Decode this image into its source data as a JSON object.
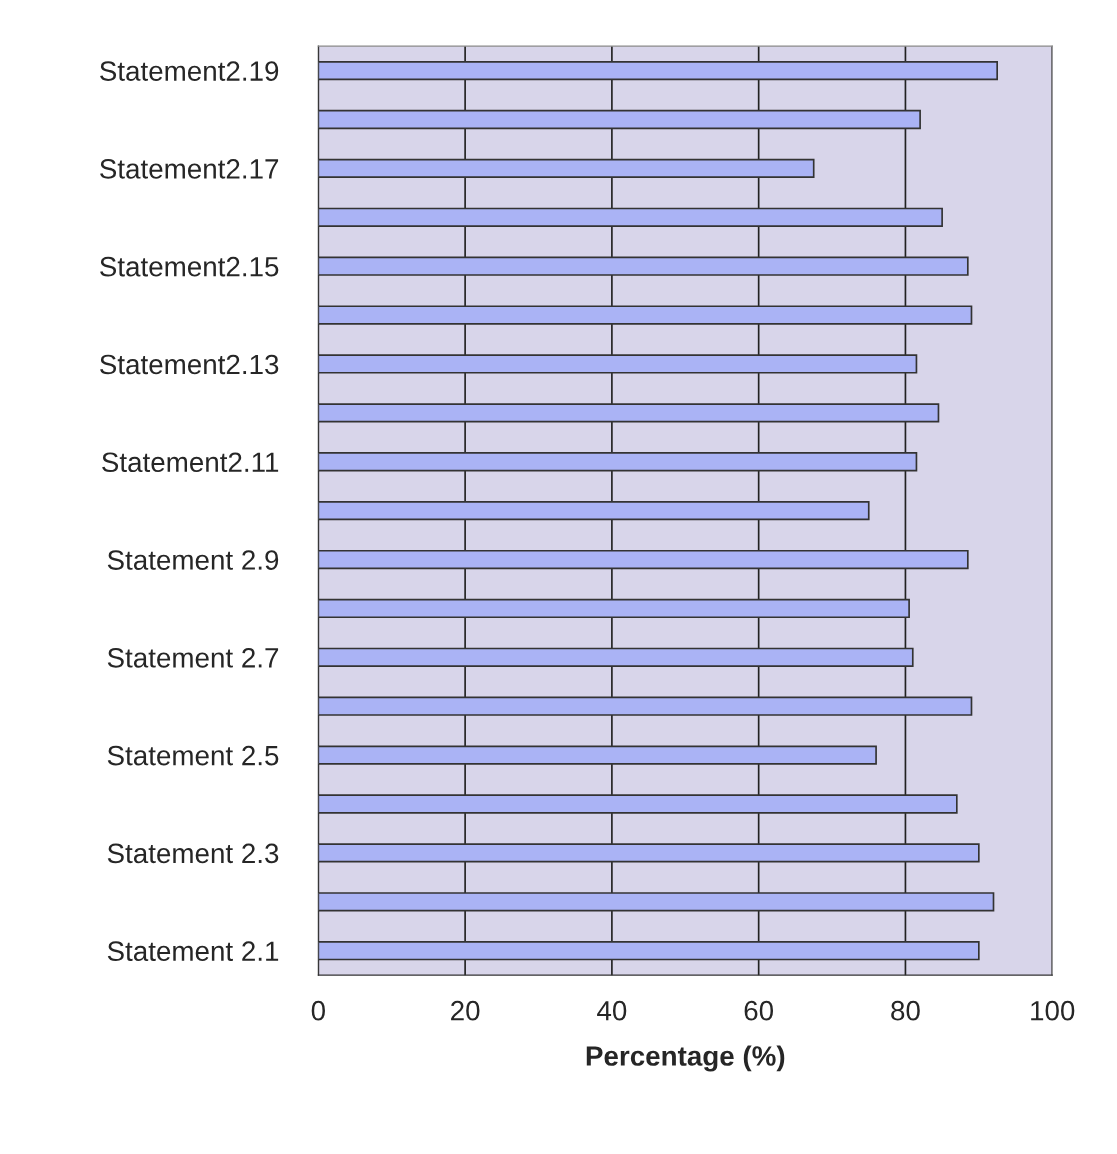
{
  "chart_data": {
    "type": "bar",
    "orientation": "horizontal",
    "xlabel": "Percentage (%)",
    "categories": [
      "Statement2.19",
      null,
      "Statement2.17",
      null,
      "Statement2.15",
      null,
      "Statement2.13",
      null,
      "Statement2.11",
      null,
      "Statement 2.9",
      null,
      "Statement 2.7",
      null,
      "Statement 2.5",
      null,
      "Statement 2.3",
      null,
      "Statement 2.1"
    ],
    "values": [
      92.5,
      82,
      67.5,
      85,
      88.5,
      89,
      81.5,
      84.5,
      81.5,
      75,
      88.5,
      80.5,
      81,
      89,
      76,
      87,
      90,
      92,
      90
    ],
    "color": "#aab3f5",
    "xlim": [
      0,
      100
    ],
    "xticks": [
      0,
      20,
      40,
      60,
      80,
      100
    ],
    "grid": "x"
  }
}
